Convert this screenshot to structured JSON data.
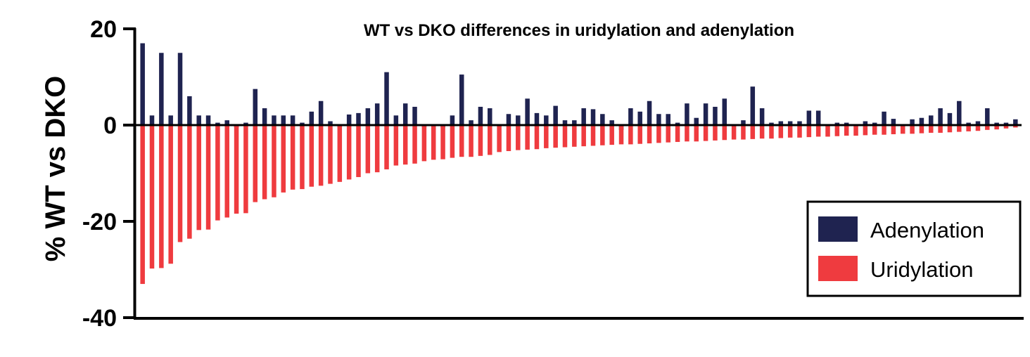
{
  "chart_data": {
    "type": "bar",
    "title": "WT vs DKO differences in uridylation and adenylation",
    "ylabel": "% WT vs  DKO",
    "xlabel": "",
    "ylim": [
      -40,
      20
    ],
    "yticks": [
      "20",
      "0",
      "-20",
      "-40"
    ],
    "ytick_values": [
      20,
      0,
      -20,
      -40
    ],
    "legend_position": "bottom-right",
    "grid": false,
    "series": [
      {
        "name": "Adenylation",
        "color": "#1f2350",
        "values": [
          17,
          2,
          15,
          2,
          15,
          6,
          2,
          2,
          0.5,
          1,
          -0.5,
          0.5,
          7.5,
          3.5,
          2,
          2,
          2,
          0.5,
          2.8,
          5,
          0.8,
          -0.5,
          2.2,
          2.5,
          3.5,
          4.5,
          11,
          2,
          4.5,
          3.8,
          -0.5,
          -1,
          -0.5,
          2,
          10.5,
          1,
          3.8,
          3.5,
          0,
          2.3,
          2,
          5.5,
          2.5,
          2,
          4,
          1,
          1,
          3.5,
          3.3,
          2.3,
          1,
          -1,
          3.5,
          2.8,
          5,
          2.3,
          2.3,
          0.5,
          4.5,
          1.5,
          4.5,
          3.8,
          5.5,
          0,
          1,
          8,
          3.5,
          0.5,
          0.8,
          0.8,
          0.8,
          3,
          3,
          0,
          0.5,
          0.5,
          0,
          0.8,
          0.5,
          2.8,
          1.3,
          0,
          1.2,
          1.5,
          2,
          3.5,
          2.5,
          5,
          0.5,
          0.8,
          3.5,
          0.5,
          0.5,
          1.2
        ]
      },
      {
        "name": "Uridylation",
        "color": "#ef3b3f",
        "values": [
          -33,
          -29.8,
          -29.7,
          -28.8,
          -24.3,
          -23.6,
          -21.8,
          -21.7,
          -19.8,
          -19.2,
          -18.4,
          -18.3,
          -16,
          -15.4,
          -15,
          -14,
          -13.4,
          -13.3,
          -12.8,
          -12.6,
          -12.2,
          -11.8,
          -11.3,
          -10.8,
          -10,
          -9.8,
          -9.2,
          -8.4,
          -8.2,
          -8,
          -7.5,
          -7.2,
          -7.1,
          -6.8,
          -6.6,
          -6.6,
          -6.4,
          -6.2,
          -5.6,
          -5.4,
          -5.2,
          -5.1,
          -5,
          -4.8,
          -4.7,
          -4.6,
          -4.5,
          -4.4,
          -4.3,
          -4.2,
          -4.1,
          -4,
          -4,
          -3.9,
          -3.8,
          -3.7,
          -3.6,
          -3.5,
          -3.4,
          -3.4,
          -3.3,
          -3.2,
          -3.1,
          -3,
          -3,
          -2.9,
          -2.8,
          -2.8,
          -2.7,
          -2.6,
          -2.6,
          -2.5,
          -2.4,
          -2.4,
          -2.3,
          -2.2,
          -2.2,
          -2.1,
          -2,
          -2,
          -1.9,
          -1.8,
          -1.8,
          -1.7,
          -1.6,
          -1.6,
          -1.5,
          -1.4,
          -1.3,
          -1.2,
          -1,
          -0.9,
          -0.7,
          -0.5
        ]
      }
    ]
  }
}
